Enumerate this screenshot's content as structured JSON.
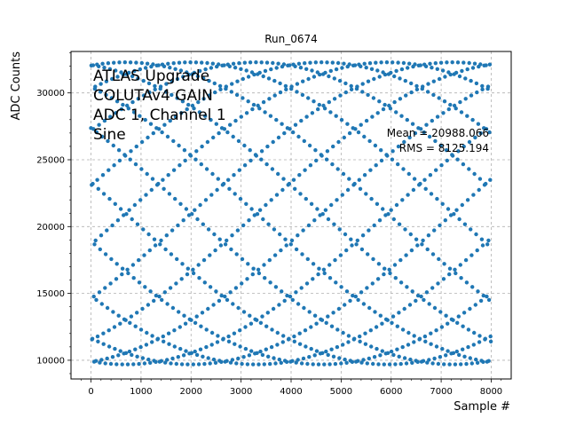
{
  "chart_data": {
    "type": "scatter",
    "title": "Run_0674",
    "xlabel": "Sample #",
    "ylabel": "ADC Counts",
    "xlim": [
      -400,
      8400
    ],
    "ylim": [
      8600,
      33100
    ],
    "xticks": [
      0,
      1000,
      2000,
      3000,
      4000,
      5000,
      6000,
      7000,
      8000
    ],
    "yticks": [
      10000,
      15000,
      20000,
      25000,
      30000
    ],
    "grid": true,
    "marker_color": "#1f77b4",
    "signal": {
      "waveform": "sine",
      "n_samples": 8000,
      "center": 20988,
      "amplitude": 11300,
      "min": 9660,
      "max": 32330
    },
    "annotations": {
      "lines": [
        "ATLAS Upgrade",
        "COLUTAv4 GAIN",
        "ADC 1, Channel 1",
        "Sine"
      ],
      "stats": [
        "Mean = 20988.066",
        "RMS = 8125.194"
      ]
    }
  }
}
